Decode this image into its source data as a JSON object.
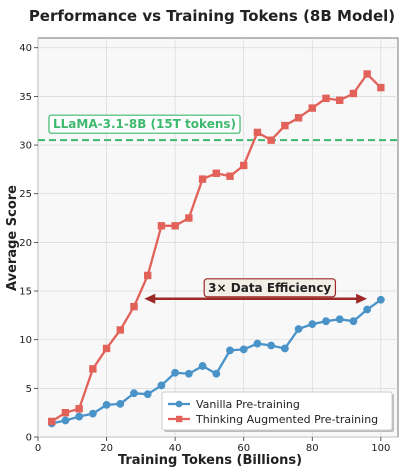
{
  "chart_data": {
    "type": "line",
    "title": "Performance vs Training Tokens (8B Model)",
    "xlabel": "Training Tokens (Billions)",
    "ylabel": "Average Score",
    "xlim": [
      0,
      105
    ],
    "ylim": [
      0,
      41
    ],
    "xticks": [
      0,
      20,
      40,
      60,
      80,
      100
    ],
    "yticks": [
      0,
      5,
      10,
      15,
      20,
      25,
      30,
      35,
      40
    ],
    "grid": true,
    "legend_position": "lower-right",
    "series": [
      {
        "name": "Vanilla Pre-training",
        "color": "#4a93c8",
        "marker": "circle",
        "points": [
          [
            4,
            1.4
          ],
          [
            8,
            1.7
          ],
          [
            12,
            2.1
          ],
          [
            16,
            2.4
          ],
          [
            20,
            3.3
          ],
          [
            24,
            3.4
          ],
          [
            28,
            4.5
          ],
          [
            32,
            4.4
          ],
          [
            36,
            5.3
          ],
          [
            40,
            6.6
          ],
          [
            44,
            6.5
          ],
          [
            48,
            7.3
          ],
          [
            52,
            6.5
          ],
          [
            56,
            8.9
          ],
          [
            60,
            9.0
          ],
          [
            64,
            9.6
          ],
          [
            68,
            9.4
          ],
          [
            72,
            9.1
          ],
          [
            76,
            11.1
          ],
          [
            80,
            11.6
          ],
          [
            84,
            11.9
          ],
          [
            88,
            12.1
          ],
          [
            92,
            11.9
          ],
          [
            96,
            13.1
          ],
          [
            100,
            14.1
          ]
        ]
      },
      {
        "name": "Thinking Augmented Pre-training",
        "color": "#e2625a",
        "marker": "square",
        "points": [
          [
            4,
            1.6
          ],
          [
            8,
            2.5
          ],
          [
            12,
            2.9
          ],
          [
            16,
            7.0
          ],
          [
            20,
            9.1
          ],
          [
            24,
            11.0
          ],
          [
            28,
            13.4
          ],
          [
            32,
            16.6
          ],
          [
            36,
            21.7
          ],
          [
            40,
            21.7
          ],
          [
            44,
            22.5
          ],
          [
            48,
            26.5
          ],
          [
            52,
            27.1
          ],
          [
            56,
            26.8
          ],
          [
            60,
            27.9
          ],
          [
            64,
            31.3
          ],
          [
            68,
            30.5
          ],
          [
            72,
            32.0
          ],
          [
            76,
            32.8
          ],
          [
            80,
            33.8
          ],
          [
            84,
            34.8
          ],
          [
            88,
            34.6
          ],
          [
            92,
            35.3
          ],
          [
            96,
            37.3
          ],
          [
            100,
            35.9
          ]
        ]
      }
    ],
    "reference_line": {
      "label": "LLaMA-3.1-8B (15T tokens)",
      "y": 30.5,
      "color": "#3db86e"
    },
    "annotation": {
      "label": "3× Data Efficiency",
      "arrow_from": [
        31,
        14.2
      ],
      "arrow_to": [
        96,
        14.2
      ],
      "color": "#9c2828"
    }
  }
}
